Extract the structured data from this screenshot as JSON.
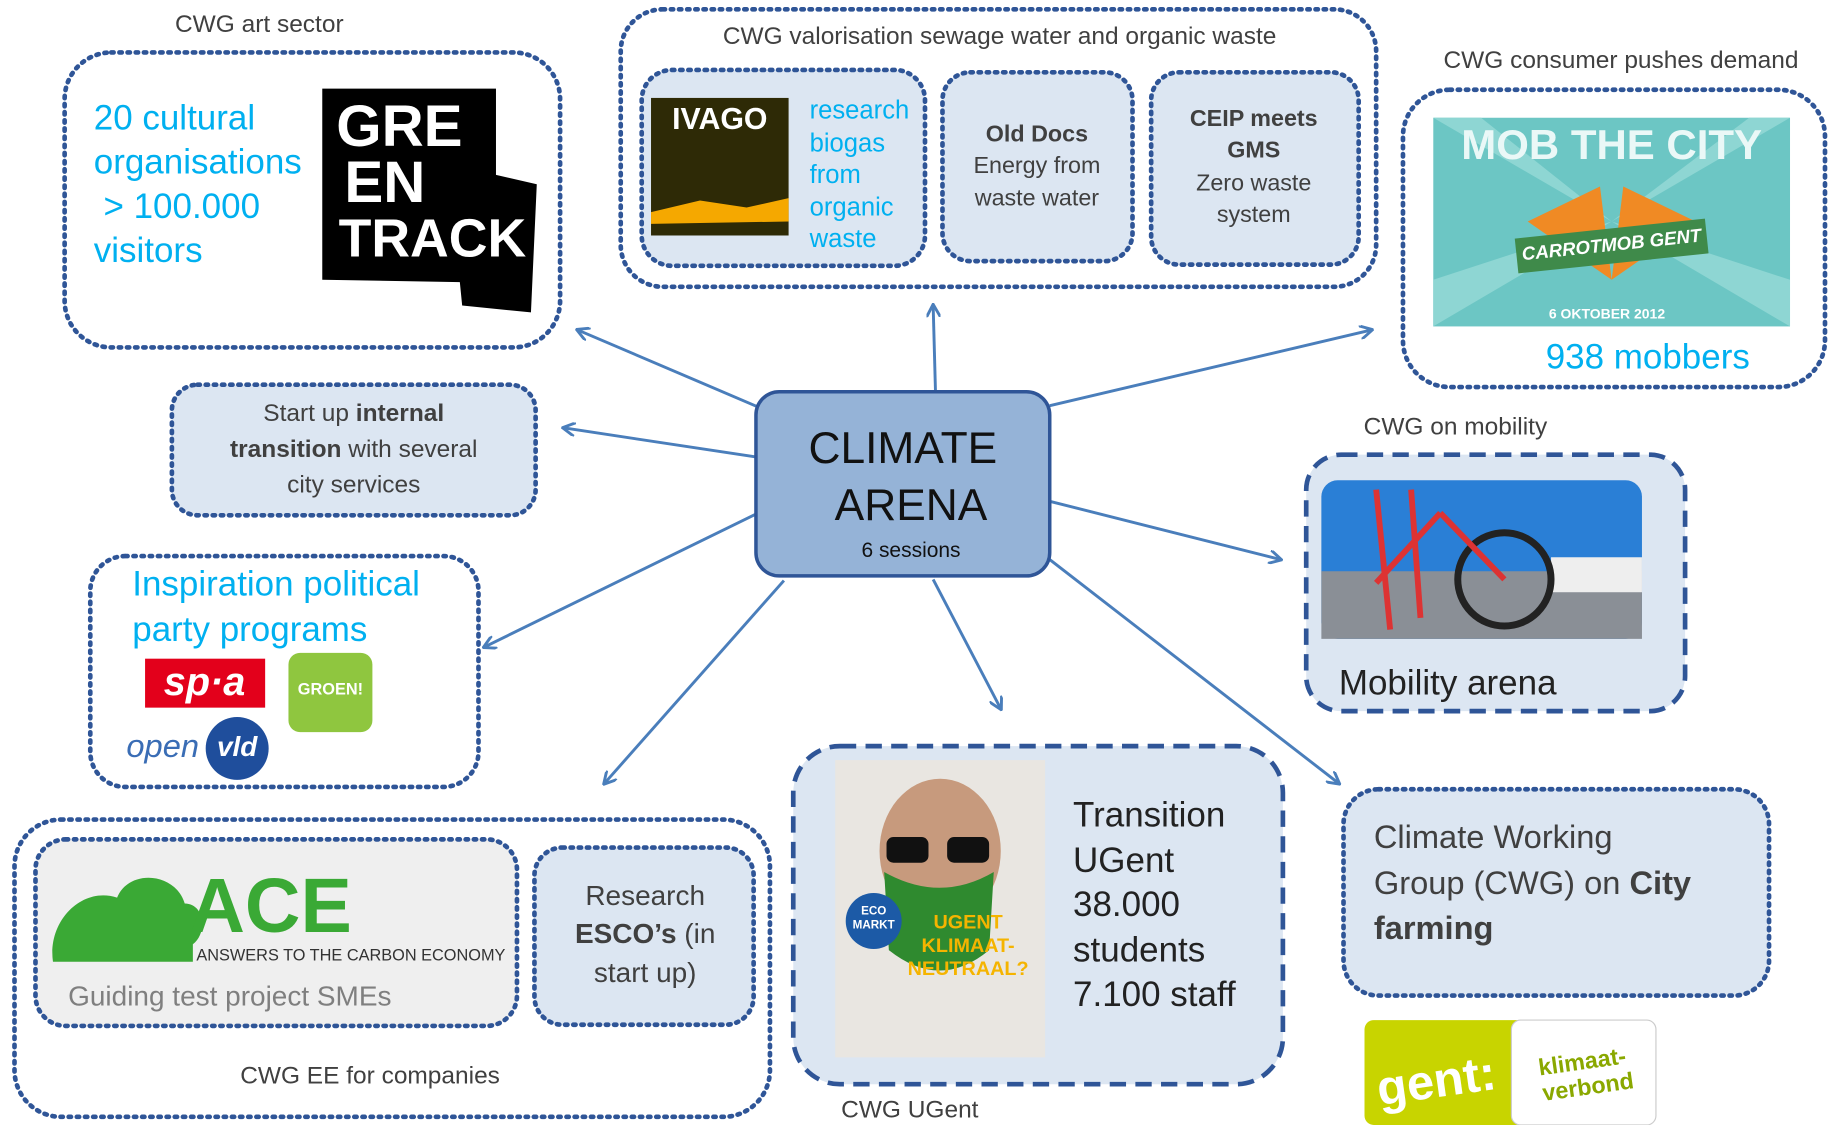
{
  "center": {
    "lines": [
      "CLIMATE",
      "ARENA"
    ],
    "subtitle": "6 sessions"
  },
  "art_sector": {
    "label": "CWG art sector",
    "text": [
      "20 cultural",
      "organisations",
      " > 100.000",
      "visitors"
    ],
    "logo": [
      "GRE",
      "EN",
      "TRACK"
    ]
  },
  "sewage": {
    "label": "CWG valorisation sewage water and organic waste",
    "ivago": {
      "logo": "IVAGO",
      "text": [
        "research",
        "biogas",
        "from",
        "organic",
        "waste"
      ]
    },
    "old_docs": {
      "title": "Old Docs",
      "text": [
        "Energy from",
        "waste water"
      ]
    },
    "ceip": {
      "title": [
        "CEIP meets",
        "GMS"
      ],
      "text": [
        "Zero waste",
        "system"
      ]
    }
  },
  "consumer": {
    "label": "CWG consumer pushes demand",
    "poster": {
      "title": "MOB THE CITY",
      "banner": "CARROTMOB GENT",
      "date": "6 OKTOBER 2012"
    },
    "text": "938 mobbers"
  },
  "internal": {
    "lines": [
      [
        "Start up ",
        "internal"
      ],
      [
        "transition",
        " with several"
      ],
      [
        "city services"
      ]
    ]
  },
  "political": {
    "text": [
      "Inspiration political",
      "party programs"
    ],
    "logos": {
      "spa": "sp·a",
      "groen": "GROEN!",
      "open": "open",
      "vld": "vld"
    }
  },
  "mobility": {
    "label": "CWG on mobility",
    "text": "Mobility arena"
  },
  "companies": {
    "label": "CWG EE for companies",
    "ace": {
      "logo": "ACE",
      "tagline": "ANSWERS TO THE CARBON ECONOMY",
      "text": "Guiding test project SMEs"
    },
    "research": {
      "lines": [
        [
          "Research"
        ],
        [
          "ESCO’s",
          " (in"
        ],
        [
          "start up)"
        ]
      ]
    }
  },
  "ugent": {
    "label": "CWG UGent",
    "poster": {
      "badge": [
        "ECO",
        "MARKT"
      ],
      "headline": [
        "UGENT",
        "KLIMAAT-",
        "NEUTRAAL?"
      ]
    },
    "text": [
      "Transition",
      "UGent",
      "38.000",
      "students",
      "7.100 staff"
    ]
  },
  "city_farming": {
    "lines": [
      [
        "Climate Working"
      ],
      [
        "Group (CWG) on ",
        "City"
      ],
      [
        "farming"
      ]
    ]
  },
  "gent_logo": {
    "left": "gent:",
    "right": [
      "klimaat-",
      "verbond"
    ]
  }
}
